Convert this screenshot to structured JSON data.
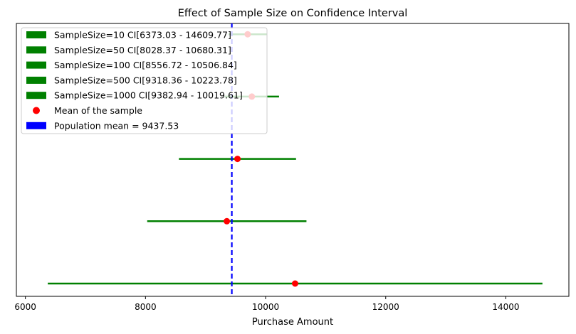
{
  "chart_data": {
    "type": "errorbar",
    "title": "Effect of Sample Size on Confidence Interval",
    "xlabel": "Purchase Amount",
    "ylabel": "",
    "xlim": [
      5850,
      15050
    ],
    "x_ticks": [
      6000,
      8000,
      10000,
      12000,
      14000
    ],
    "grid": false,
    "legend_placement": "top-left",
    "series": [
      {
        "name": "SampleSize=10 CI[6373.03 - 14609.77]",
        "sample_size": 10,
        "ci_low": 6373.03,
        "ci_high": 14609.77,
        "mean": 10491.4
      },
      {
        "name": "SampleSize=50 CI[8028.37 - 10680.31]",
        "sample_size": 50,
        "ci_low": 8028.37,
        "ci_high": 10680.31,
        "mean": 9354.34
      },
      {
        "name": "SampleSize=100 CI[8556.72 - 10506.84]",
        "sample_size": 100,
        "ci_low": 8556.72,
        "ci_high": 10506.84,
        "mean": 9531.78
      },
      {
        "name": "SampleSize=500 CI[9318.36 - 10223.78]",
        "sample_size": 500,
        "ci_low": 9318.36,
        "ci_high": 10223.78,
        "mean": 9771.07
      },
      {
        "name": "SampleSize=1000 CI[9382.94 - 10019.61]",
        "sample_size": 1000,
        "ci_low": 9382.94,
        "ci_high": 10019.61,
        "mean": 9701.28
      }
    ],
    "mean_legend": "Mean of the sample",
    "population_mean": 9437.53,
    "population_legend": "Population mean = 9437.53",
    "colors": {
      "ci": "#008000",
      "mean": "#ff0000",
      "population": "#0000ff"
    }
  }
}
